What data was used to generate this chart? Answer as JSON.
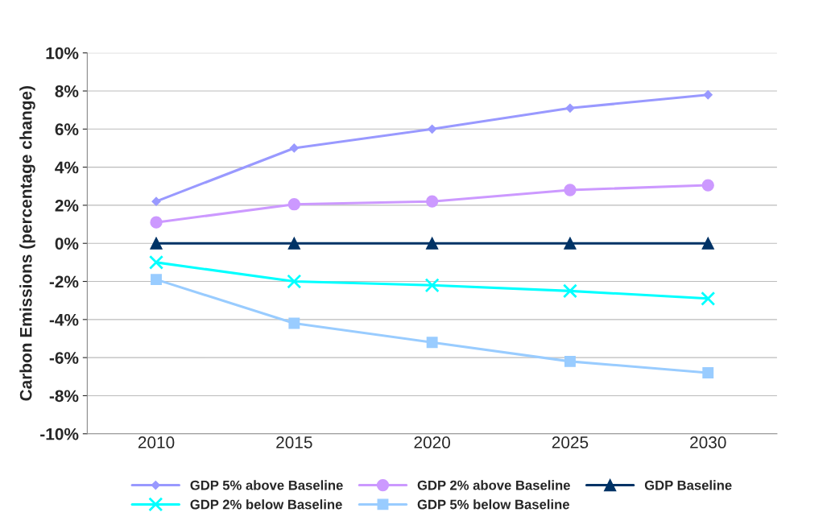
{
  "chart_data": {
    "type": "line",
    "ylabel": "Carbon Emissions (percentage change)",
    "categories": [
      "2010",
      "2015",
      "2020",
      "2025",
      "2030"
    ],
    "series": [
      {
        "name": "GDP 5% above Baseline",
        "color": "#9999ff",
        "marker": "diamond",
        "values": [
          2.2,
          5.0,
          6.0,
          7.1,
          7.8
        ]
      },
      {
        "name": "GDP 2% above Baseline",
        "color": "#cc99ff",
        "marker": "circle",
        "values": [
          1.1,
          2.05,
          2.2,
          2.8,
          3.05
        ]
      },
      {
        "name": "GDP Baseline",
        "color": "#003366",
        "marker": "triangle",
        "values": [
          0,
          0,
          0,
          0,
          0
        ]
      },
      {
        "name": "GDP 2% below Baseline",
        "color": "#00ffff",
        "marker": "cross",
        "values": [
          -1.0,
          -2.0,
          -2.2,
          -2.5,
          -2.9
        ]
      },
      {
        "name": "GDP 5% below Baseline",
        "color": "#99ccff",
        "marker": "square",
        "values": [
          -1.9,
          -4.2,
          -5.2,
          -6.2,
          -6.8
        ]
      }
    ],
    "ylim": [
      -10,
      10
    ],
    "yticks": [
      {
        "value": -10,
        "label": "-10%"
      },
      {
        "value": -8,
        "label": "-8%"
      },
      {
        "value": -6,
        "label": "-6%"
      },
      {
        "value": -4,
        "label": "-4%"
      },
      {
        "value": -2,
        "label": "-2%"
      },
      {
        "value": 0,
        "label": "0%"
      },
      {
        "value": 2,
        "label": "2%"
      },
      {
        "value": 4,
        "label": "4%"
      },
      {
        "value": 6,
        "label": "6%"
      },
      {
        "value": 8,
        "label": "8%"
      },
      {
        "value": 10,
        "label": "10%"
      }
    ],
    "grid": "y",
    "legend": "bottom"
  }
}
